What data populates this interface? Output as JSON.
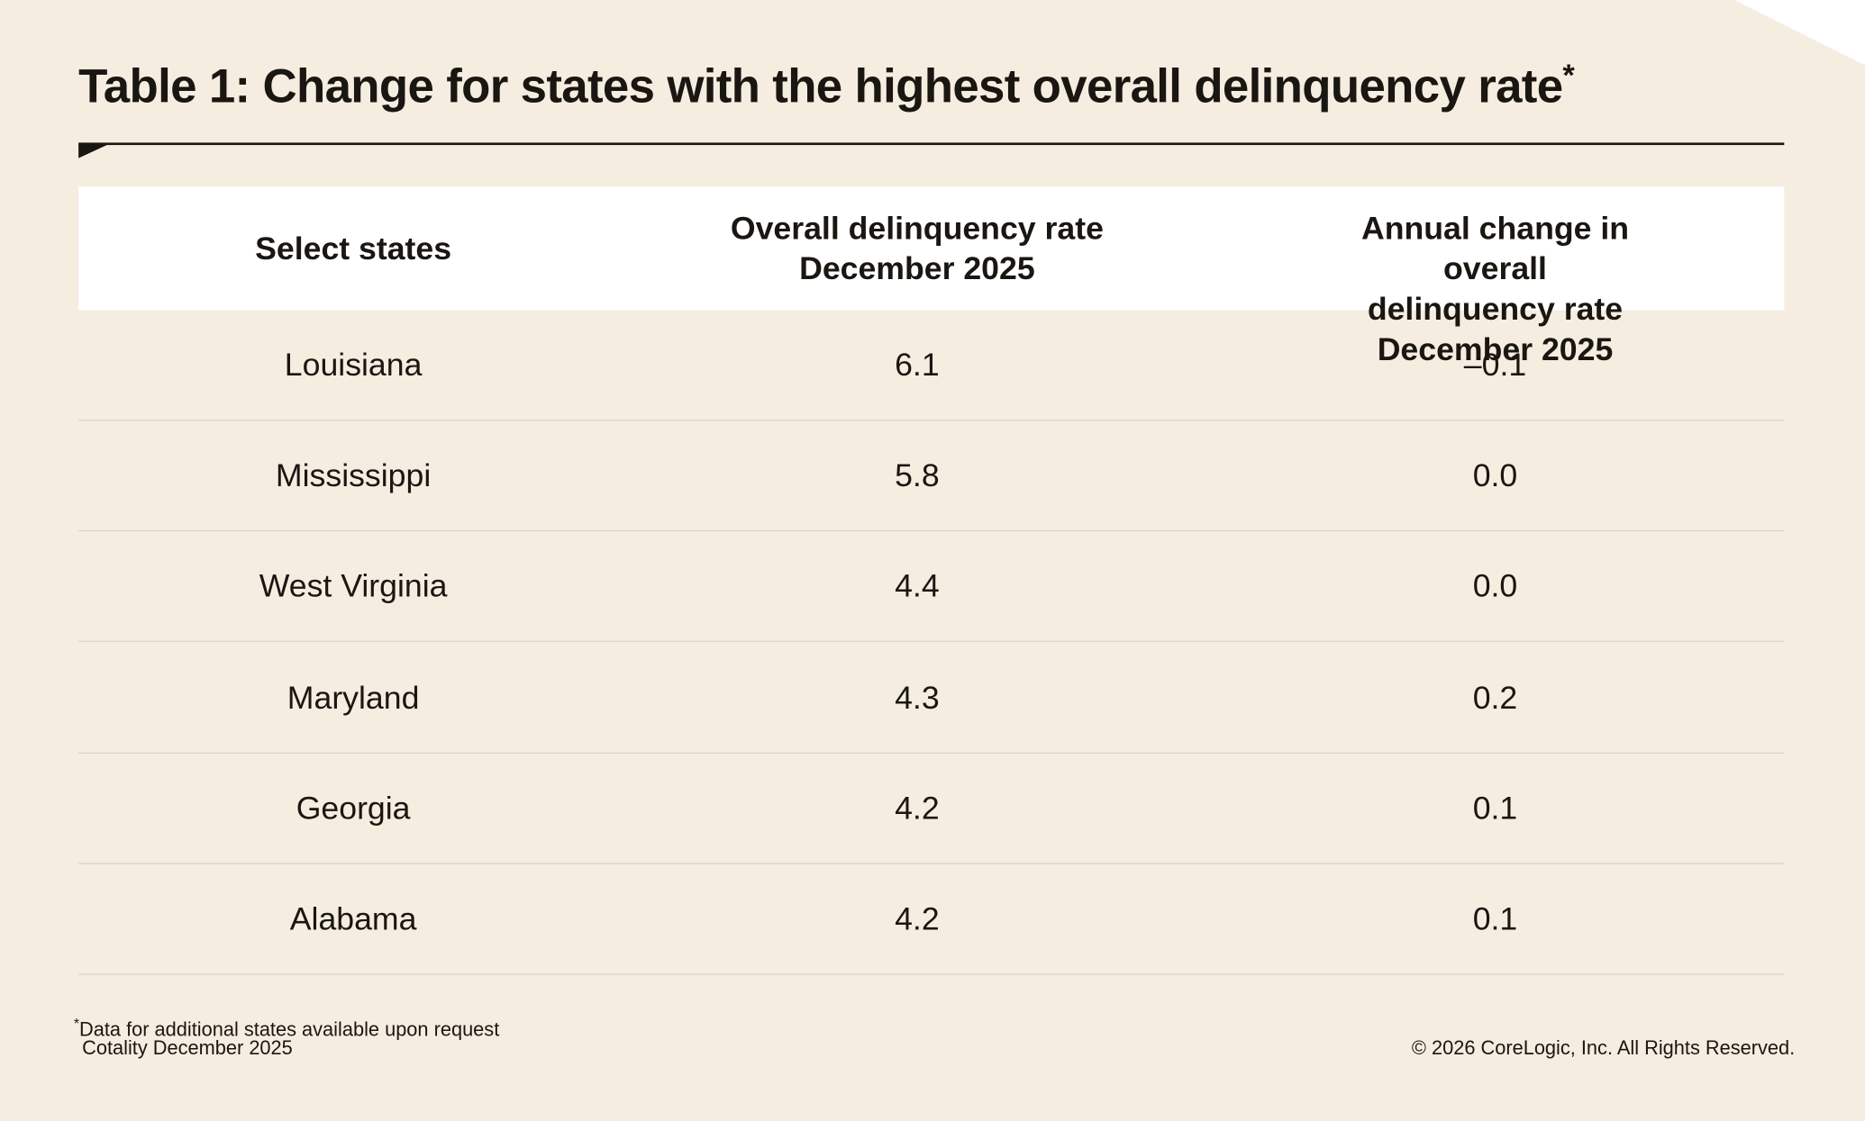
{
  "header": {
    "title": "Table 1: Change for states with the highest overall delinquency rate",
    "title_marker": "*"
  },
  "table": {
    "columns": [
      "Select states",
      "Overall delinquency rate\nDecember 2025",
      "Annual change in overall\ndelinquency rate December 2025"
    ],
    "rows": [
      [
        "Louisiana",
        "6.1",
        "–0.1"
      ],
      [
        "Mississippi",
        "5.8",
        "0.0"
      ],
      [
        "West Virginia",
        "4.4",
        "0.0"
      ],
      [
        "Maryland",
        "4.3",
        "0.2"
      ],
      [
        "Georgia",
        "4.2",
        "0.1"
      ],
      [
        "Alabama",
        "4.2",
        "0.1"
      ]
    ]
  },
  "footer": {
    "note_marker": "*",
    "note": "Data for additional states available upon request",
    "source": "Cotality December 2025",
    "copyright": "© 2026 CoreLogic, Inc. All Rights Reserved."
  }
}
